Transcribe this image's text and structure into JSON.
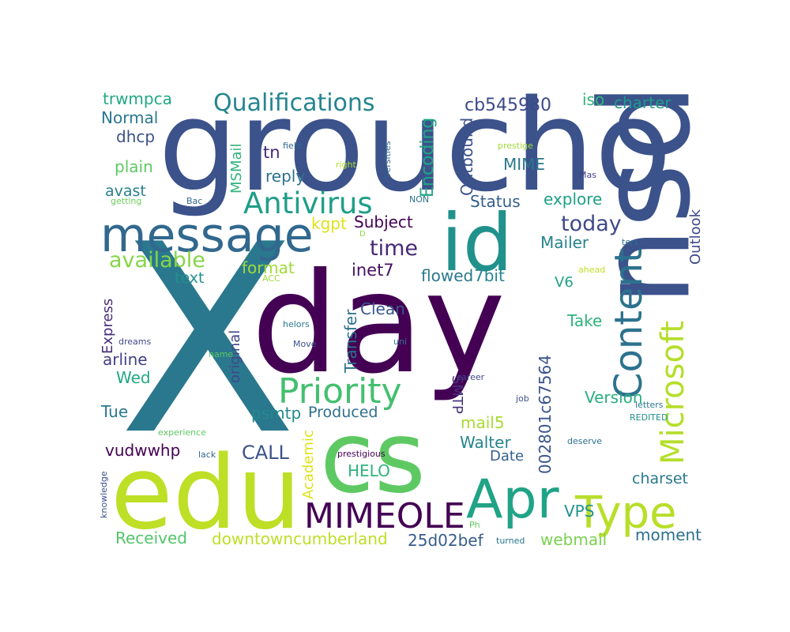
{
  "words": [
    {
      "text": "X",
      "color": "#2a788e"
    },
    {
      "text": "day",
      "color": "#440154"
    },
    {
      "text": "groucho",
      "color": "#3b528b"
    },
    {
      "text": "psu",
      "color": "#3b528b"
    },
    {
      "text": "edu",
      "color": "#bddf26"
    },
    {
      "text": "cs",
      "color": "#5ec962"
    },
    {
      "text": "id",
      "color": "#21918c"
    },
    {
      "text": "message",
      "color": "#31688e"
    },
    {
      "text": "Apr",
      "color": "#20a386"
    },
    {
      "text": "Type",
      "color": "#b8de29"
    },
    {
      "text": "MIMEOLE",
      "color": "#440154"
    },
    {
      "text": "Priority",
      "color": "#44bf70"
    },
    {
      "text": "Content",
      "color": "#2c728e"
    },
    {
      "text": "Microsoft",
      "color": "#b5de2b"
    },
    {
      "text": "Antivirus",
      "color": "#1f9e89"
    },
    {
      "text": "Qualifications",
      "color": "#25858e"
    },
    {
      "text": "available",
      "color": "#86d549"
    },
    {
      "text": "today",
      "color": "#3e4a89"
    },
    {
      "text": "time",
      "color": "#482878"
    },
    {
      "text": "Encoding",
      "color": "#21a585"
    },
    {
      "text": "cb545980",
      "color": "#3e4989"
    },
    {
      "text": "charter",
      "color": "#1f9a8a"
    },
    {
      "text": "iso",
      "color": "#2fb47c"
    },
    {
      "text": "trwmpca",
      "color": "#22a884"
    },
    {
      "text": "Normal",
      "color": "#2a788e"
    },
    {
      "text": "dhcp",
      "color": "#3b528b"
    },
    {
      "text": "plain",
      "color": "#5ec962"
    },
    {
      "text": "avast",
      "color": "#277f8e"
    },
    {
      "text": "tn",
      "color": "#482878"
    },
    {
      "text": "reply",
      "color": "#2d708e"
    },
    {
      "text": "MSMail",
      "color": "#2fb47c"
    },
    {
      "text": "Outbound",
      "color": "#3b528b"
    },
    {
      "text": "MIME",
      "color": "#2a788e"
    },
    {
      "text": "Status",
      "color": "#355f8d"
    },
    {
      "text": "explore",
      "color": "#1fa088"
    },
    {
      "text": "Outlook",
      "color": "#3e4a89"
    },
    {
      "text": "kgpt",
      "color": "#dde318"
    },
    {
      "text": "Subject",
      "color": "#440154"
    },
    {
      "text": "Mailer",
      "color": "#26828e"
    },
    {
      "text": "format",
      "color": "#a0da39"
    },
    {
      "text": "text",
      "color": "#21918c"
    },
    {
      "text": "inet7",
      "color": "#471063"
    },
    {
      "text": "flowed",
      "color": "#2a788e"
    },
    {
      "text": "7bit",
      "color": "#25848e"
    },
    {
      "text": "V6",
      "color": "#1fa187"
    },
    {
      "text": "Express",
      "color": "#472c7a"
    },
    {
      "text": "Clean",
      "color": "#39568c"
    },
    {
      "text": "Take",
      "color": "#2fb47c"
    },
    {
      "text": "original",
      "color": "#3f4889"
    },
    {
      "text": "Transfer",
      "color": "#2c728e"
    },
    {
      "text": "arline",
      "color": "#433e85"
    },
    {
      "text": "SMTP",
      "color": "#46337e"
    },
    {
      "text": "Wed",
      "color": "#22a884"
    },
    {
      "text": "Version",
      "color": "#29af7f"
    },
    {
      "text": "002801c67564",
      "color": "#3a548c"
    },
    {
      "text": "Tue",
      "color": "#2a788e"
    },
    {
      "text": "psmtp",
      "color": "#23898e"
    },
    {
      "text": "Produced",
      "color": "#2d708e"
    },
    {
      "text": "mail5",
      "color": "#a8db34"
    },
    {
      "text": "Walter",
      "color": "#25858e"
    },
    {
      "text": "CALL",
      "color": "#3b528b"
    },
    {
      "text": "Academic",
      "color": "#dde318"
    },
    {
      "text": "Date",
      "color": "#34618d"
    },
    {
      "text": "vudwwhp",
      "color": "#440154"
    },
    {
      "text": "HELO",
      "color": "#2fb47c"
    },
    {
      "text": "VPS",
      "color": "#20928c"
    },
    {
      "text": "charset",
      "color": "#2a788e"
    },
    {
      "text": "moment",
      "color": "#2c718e"
    },
    {
      "text": "Received",
      "color": "#52c569"
    },
    {
      "text": "downtowncumberland",
      "color": "#bddf26"
    },
    {
      "text": "25d02bef",
      "color": "#365c8d"
    },
    {
      "text": "webmail",
      "color": "#7ad151"
    },
    {
      "text": "field",
      "color": "#31688e"
    },
    {
      "text": "prestige",
      "color": "#a0da39"
    },
    {
      "text": "right",
      "color": "#b5de2b"
    },
    {
      "text": "versities",
      "color": "#31688e"
    },
    {
      "text": "Mas",
      "color": "#424086"
    },
    {
      "text": "Bac",
      "color": "#31688e"
    },
    {
      "text": "getting",
      "color": "#6ccd5a"
    },
    {
      "text": "NON",
      "color": "#2c728e"
    },
    {
      "text": "D",
      "color": "#8fd744"
    },
    {
      "text": "ters",
      "color": "#2d708e"
    },
    {
      "text": "ahead",
      "color": "#c2df23"
    },
    {
      "text": "ACC",
      "color": "#9fda3a"
    },
    {
      "text": "dreams",
      "color": "#3e4989"
    },
    {
      "text": "helors",
      "color": "#2a788e"
    },
    {
      "text": "Move",
      "color": "#3b528b"
    },
    {
      "text": "uni",
      "color": "#2d708e"
    },
    {
      "text": "name",
      "color": "#5ec962"
    },
    {
      "text": "career",
      "color": "#3f4889"
    },
    {
      "text": "job",
      "color": "#3b528b"
    },
    {
      "text": "REDITED",
      "color": "#21918c"
    },
    {
      "text": "experience",
      "color": "#5ec962"
    },
    {
      "text": "deserve",
      "color": "#2c728e"
    },
    {
      "text": "letters",
      "color": "#2a788e"
    },
    {
      "text": "lack",
      "color": "#31688e"
    },
    {
      "text": "prestigious",
      "color": "#440154"
    },
    {
      "text": "knowledge",
      "color": "#3b528b"
    },
    {
      "text": "Ph",
      "color": "#5ec962"
    },
    {
      "text": "turned",
      "color": "#2a788e"
    }
  ]
}
